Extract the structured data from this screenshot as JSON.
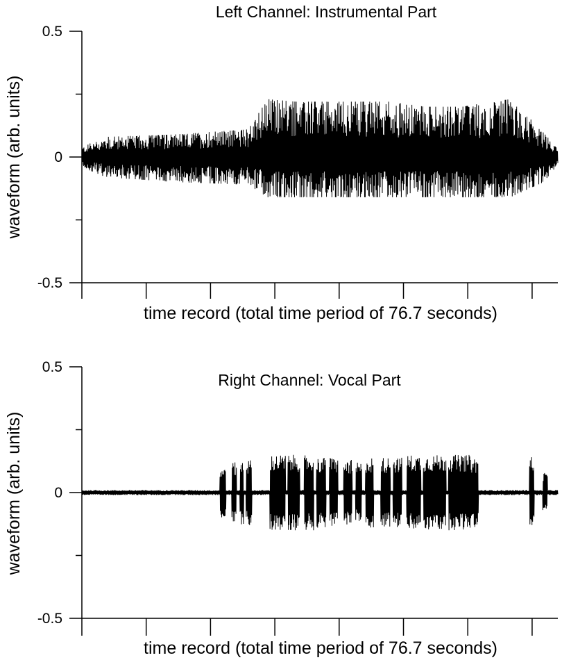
{
  "chart_data": [
    {
      "type": "line",
      "subtype": "audio-waveform",
      "title": "Left Channel: Instrumental Part",
      "xlabel": "time record (total time period of 76.7 seconds)",
      "ylabel": "waveform (arb. units)",
      "ylim": [
        -0.5,
        0.5
      ],
      "yticks": [
        -0.5,
        0,
        0.5
      ],
      "ytick_labels": [
        "-0.5",
        "0",
        "0.5"
      ],
      "x_minor_tick_count": 8,
      "color": "#000000",
      "envelope": {
        "t_fraction": [
          0.0,
          0.05,
          0.2,
          0.35,
          0.39,
          0.45,
          0.55,
          0.65,
          0.72,
          0.8,
          0.86,
          0.9,
          0.97,
          1.0
        ],
        "upper": [
          0.04,
          0.08,
          0.09,
          0.11,
          0.23,
          0.22,
          0.22,
          0.22,
          0.2,
          0.2,
          0.22,
          0.23,
          0.1,
          0.03
        ],
        "lower": [
          -0.04,
          -0.08,
          -0.1,
          -0.11,
          -0.16,
          -0.16,
          -0.16,
          -0.16,
          -0.16,
          -0.16,
          -0.16,
          -0.16,
          -0.1,
          -0.03
        ]
      }
    },
    {
      "type": "line",
      "subtype": "audio-waveform",
      "title": "Right Channel: Vocal Part",
      "xlabel": "time record (total time period of 76.7 seconds)",
      "ylabel": "waveform (arb. units)",
      "ylim": [
        -0.5,
        0.5
      ],
      "yticks": [
        -0.5,
        0,
        0.5
      ],
      "ytick_labels": [
        "-0.5",
        "0",
        "0.5"
      ],
      "x_minor_tick_count": 8,
      "color": "#000000",
      "baseline_noise": 0.01,
      "bursts": [
        [
          0.29,
          0.303,
          0.1
        ],
        [
          0.315,
          0.325,
          0.12
        ],
        [
          0.332,
          0.34,
          0.13
        ],
        [
          0.345,
          0.357,
          0.13
        ],
        [
          0.395,
          0.428,
          0.15
        ],
        [
          0.433,
          0.458,
          0.15
        ],
        [
          0.467,
          0.487,
          0.15
        ],
        [
          0.493,
          0.513,
          0.14
        ],
        [
          0.52,
          0.538,
          0.14
        ],
        [
          0.55,
          0.568,
          0.13
        ],
        [
          0.575,
          0.588,
          0.12
        ],
        [
          0.596,
          0.613,
          0.14
        ],
        [
          0.628,
          0.648,
          0.14
        ],
        [
          0.654,
          0.672,
          0.14
        ],
        [
          0.682,
          0.712,
          0.15
        ],
        [
          0.717,
          0.765,
          0.15
        ],
        [
          0.77,
          0.793,
          0.15
        ],
        [
          0.793,
          0.818,
          0.15
        ],
        [
          0.818,
          0.833,
          0.14
        ],
        [
          0.94,
          0.95,
          0.15
        ],
        [
          0.968,
          0.978,
          0.08
        ]
      ]
    }
  ]
}
